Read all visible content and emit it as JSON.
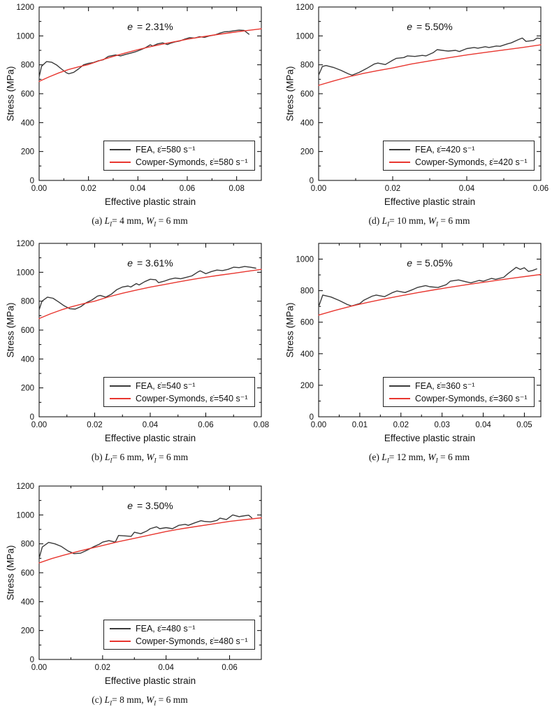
{
  "figure": {
    "background": "#ffffff",
    "fea_color": "#3a3a3a",
    "cowper_color": "#e8362f",
    "axis_color": "#000000"
  },
  "chart_data": [
    {
      "id": "a",
      "type": "line",
      "xlabel": "Effective plastic strain",
      "ylabel": "Stress (MPa)",
      "annotation": {
        "var": "e",
        "rest": " = 2.31%"
      },
      "caption": [
        "(a) ",
        "L",
        "I",
        "= 4 mm, ",
        "W",
        "I",
        " = 6 mm"
      ],
      "xlim": [
        0,
        0.09
      ],
      "ylim": [
        0,
        1200
      ],
      "xticks": [
        0.0,
        0.02,
        0.04,
        0.06,
        0.08
      ],
      "xtick_labels": [
        "0.00",
        "0.02",
        "0.04",
        "0.06",
        "0.08"
      ],
      "x_minor_step": 0.01,
      "yticks": [
        0,
        200,
        400,
        600,
        800,
        1000,
        1200
      ],
      "ytick_labels": [
        "0",
        "200",
        "400",
        "600",
        "800",
        "1000",
        "1200"
      ],
      "y_minor_step": 100,
      "legend_position": "bottom-center",
      "series": [
        {
          "name": "FEA, ε̇=580 s⁻¹",
          "color": "#3a3a3a",
          "x": [
            0,
            0.001,
            0.003,
            0.005,
            0.007,
            0.009,
            0.011,
            0.012,
            0.014,
            0.016,
            0.018,
            0.02,
            0.022,
            0.024,
            0.026,
            0.028,
            0.029,
            0.031,
            0.033,
            0.035,
            0.037,
            0.039,
            0.041,
            0.043,
            0.045,
            0.046,
            0.048,
            0.05,
            0.052,
            0.053,
            0.055,
            0.057,
            0.059,
            0.061,
            0.063,
            0.065,
            0.067,
            0.069,
            0.071,
            0.073,
            0.075,
            0.077,
            0.079,
            0.081,
            0.083,
            0.085
          ],
          "y": [
            715,
            790,
            822,
            818,
            800,
            772,
            745,
            738,
            748,
            772,
            800,
            810,
            816,
            828,
            835,
            858,
            862,
            868,
            862,
            872,
            880,
            890,
            903,
            918,
            938,
            930,
            945,
            952,
            940,
            948,
            958,
            965,
            978,
            988,
            985,
            995,
            990,
            1000,
            1006,
            1018,
            1028,
            1030,
            1036,
            1040,
            1038,
            1012
          ]
        },
        {
          "name": "Cowper-Symonds, ε̇=580 s⁻¹",
          "color": "#e8362f",
          "x": [
            0,
            0.004,
            0.008,
            0.012,
            0.016,
            0.02,
            0.025,
            0.03,
            0.035,
            0.04,
            0.045,
            0.05,
            0.055,
            0.06,
            0.065,
            0.07,
            0.075,
            0.08,
            0.085,
            0.09
          ],
          "y": [
            685,
            716,
            744,
            768,
            786,
            802,
            832,
            858,
            882,
            905,
            925,
            943,
            960,
            977,
            991,
            1004,
            1016,
            1028,
            1039,
            1049
          ]
        }
      ]
    },
    {
      "id": "d",
      "type": "line",
      "xlabel": "Effective plastic strain",
      "ylabel": "Stress (MPa)",
      "annotation": {
        "var": "e",
        "rest": " = 5.50%"
      },
      "caption": [
        "(d) ",
        "L",
        "I",
        "= 10 mm, ",
        "W",
        "I",
        " = 6 mm"
      ],
      "xlim": [
        0,
        0.06
      ],
      "ylim": [
        0,
        1200
      ],
      "xticks": [
        0.0,
        0.02,
        0.04,
        0.06
      ],
      "xtick_labels": [
        "0.00",
        "0.02",
        "0.04",
        "0.06"
      ],
      "x_minor_step": 0.01,
      "yticks": [
        0,
        200,
        400,
        600,
        800,
        1000,
        1200
      ],
      "ytick_labels": [
        "0",
        "200",
        "400",
        "600",
        "800",
        "1000",
        "1200"
      ],
      "y_minor_step": 100,
      "legend_position": "bottom-center",
      "series": [
        {
          "name": "FEA, ε̇=420 s⁻¹",
          "color": "#3a3a3a",
          "x": [
            0,
            0.001,
            0.002,
            0.004,
            0.006,
            0.008,
            0.009,
            0.011,
            0.013,
            0.015,
            0.016,
            0.018,
            0.02,
            0.021,
            0.023,
            0.024,
            0.026,
            0.028,
            0.029,
            0.031,
            0.032,
            0.034,
            0.035,
            0.037,
            0.038,
            0.04,
            0.042,
            0.043,
            0.045,
            0.046,
            0.048,
            0.049,
            0.051,
            0.052,
            0.054,
            0.055,
            0.056,
            0.058,
            0.059,
            0.06
          ],
          "y": [
            728,
            788,
            795,
            782,
            762,
            738,
            728,
            748,
            775,
            805,
            812,
            802,
            832,
            845,
            850,
            862,
            858,
            865,
            862,
            885,
            905,
            898,
            895,
            900,
            892,
            912,
            920,
            915,
            925,
            920,
            930,
            928,
            945,
            952,
            975,
            985,
            962,
            968,
            985,
            982
          ]
        },
        {
          "name": "Cowper-Symonds, ε̇=420 s⁻¹",
          "color": "#e8362f",
          "x": [
            0,
            0.004,
            0.008,
            0.012,
            0.016,
            0.02,
            0.025,
            0.03,
            0.035,
            0.04,
            0.045,
            0.05,
            0.055,
            0.06
          ],
          "y": [
            658,
            688,
            716,
            740,
            760,
            778,
            805,
            827,
            848,
            868,
            886,
            903,
            920,
            938
          ]
        }
      ]
    },
    {
      "id": "b",
      "type": "line",
      "xlabel": "Effective plastic strain",
      "ylabel": "Stress (MPa)",
      "annotation": {
        "var": "e",
        "rest": " = 3.61%"
      },
      "caption": [
        "(b) ",
        "L",
        "I",
        "= 6 mm, ",
        "W",
        "I",
        " = 6 mm"
      ],
      "xlim": [
        0,
        0.08
      ],
      "ylim": [
        0,
        1200
      ],
      "xticks": [
        0.0,
        0.02,
        0.04,
        0.06,
        0.08
      ],
      "xtick_labels": [
        "0.00",
        "0.02",
        "0.04",
        "0.06",
        "0.08"
      ],
      "x_minor_step": 0.01,
      "yticks": [
        0,
        200,
        400,
        600,
        800,
        1000,
        1200
      ],
      "ytick_labels": [
        "0",
        "200",
        "400",
        "600",
        "800",
        "1000",
        "1200"
      ],
      "y_minor_step": 100,
      "legend_position": "bottom-center",
      "series": [
        {
          "name": "FEA, ε̇=540 s⁻¹",
          "color": "#3a3a3a",
          "x": [
            0,
            0.001,
            0.003,
            0.005,
            0.007,
            0.009,
            0.011,
            0.013,
            0.015,
            0.017,
            0.019,
            0.021,
            0.022,
            0.024,
            0.026,
            0.028,
            0.03,
            0.032,
            0.033,
            0.035,
            0.036,
            0.038,
            0.04,
            0.042,
            0.043,
            0.045,
            0.047,
            0.049,
            0.051,
            0.053,
            0.055,
            0.057,
            0.058,
            0.06,
            0.062,
            0.064,
            0.066,
            0.068,
            0.07,
            0.072,
            0.074,
            0.076,
            0.078
          ],
          "y": [
            740,
            800,
            828,
            820,
            795,
            768,
            748,
            745,
            762,
            790,
            808,
            835,
            840,
            828,
            848,
            880,
            898,
            905,
            898,
            922,
            912,
            935,
            952,
            948,
            928,
            938,
            952,
            960,
            955,
            965,
            975,
            1000,
            1010,
            990,
            1005,
            1015,
            1012,
            1020,
            1035,
            1032,
            1040,
            1035,
            1028
          ]
        },
        {
          "name": "Cowper-Symonds, ε̇=540 s⁻¹",
          "color": "#e8362f",
          "x": [
            0,
            0.004,
            0.008,
            0.012,
            0.016,
            0.02,
            0.025,
            0.03,
            0.035,
            0.04,
            0.045,
            0.05,
            0.055,
            0.06,
            0.065,
            0.07,
            0.075,
            0.08
          ],
          "y": [
            680,
            712,
            740,
            763,
            783,
            800,
            830,
            855,
            877,
            897,
            915,
            933,
            950,
            966,
            980,
            993,
            1007,
            1020
          ]
        }
      ]
    },
    {
      "id": "e",
      "type": "line",
      "xlabel": "Effective plastic strain",
      "ylabel": "Stress (MPa)",
      "annotation": {
        "var": "e",
        "rest": " = 5.05%"
      },
      "caption": [
        "(e) ",
        "L",
        "I",
        "= 12 mm, ",
        "W",
        "I",
        " = 6 mm"
      ],
      "xlim": [
        0,
        0.054
      ],
      "ylim": [
        0,
        1100
      ],
      "xticks": [
        0.0,
        0.01,
        0.02,
        0.03,
        0.04,
        0.05
      ],
      "xtick_labels": [
        "0.00",
        "0.01",
        "0.02",
        "0.03",
        "0.04",
        "0.05"
      ],
      "x_minor_step": 0.005,
      "yticks": [
        0,
        200,
        400,
        600,
        800,
        1000
      ],
      "ytick_labels": [
        "0",
        "200",
        "400",
        "600",
        "800",
        "1000"
      ],
      "y_minor_step": 100,
      "legend_position": "bottom-center",
      "series": [
        {
          "name": "FEA, ε̇=360 s⁻¹",
          "color": "#3a3a3a",
          "x": [
            0,
            0.001,
            0.003,
            0.005,
            0.007,
            0.008,
            0.01,
            0.011,
            0.013,
            0.014,
            0.016,
            0.018,
            0.019,
            0.021,
            0.023,
            0.024,
            0.026,
            0.027,
            0.029,
            0.031,
            0.032,
            0.034,
            0.036,
            0.037,
            0.039,
            0.04,
            0.042,
            0.043,
            0.045,
            0.046,
            0.048,
            0.049,
            0.05,
            0.051,
            0.052,
            0.053
          ],
          "y": [
            698,
            772,
            760,
            738,
            712,
            703,
            718,
            740,
            765,
            772,
            762,
            788,
            798,
            788,
            808,
            820,
            832,
            825,
            820,
            838,
            860,
            868,
            855,
            850,
            865,
            860,
            878,
            872,
            885,
            908,
            948,
            935,
            945,
            922,
            928,
            938
          ]
        },
        {
          "name": "Cowper-Symonds, ε̇=360 s⁻¹",
          "color": "#e8362f",
          "x": [
            0,
            0.004,
            0.008,
            0.012,
            0.016,
            0.02,
            0.024,
            0.028,
            0.032,
            0.036,
            0.04,
            0.044,
            0.048,
            0.052,
            0.054
          ],
          "y": [
            645,
            675,
            702,
            726,
            748,
            768,
            787,
            805,
            822,
            838,
            853,
            868,
            882,
            896,
            903
          ]
        }
      ]
    },
    {
      "id": "c",
      "type": "line",
      "xlabel": "Effective plastic strain",
      "ylabel": "Stress (MPa)",
      "annotation": {
        "var": "e",
        "rest": " = 3.50%"
      },
      "caption": [
        "(c) ",
        "L",
        "I",
        "= 8 mm, ",
        "W",
        "I",
        " = 6 mm"
      ],
      "xlim": [
        0,
        0.07
      ],
      "ylim": [
        0,
        1200
      ],
      "xticks": [
        0.0,
        0.02,
        0.04,
        0.06
      ],
      "xtick_labels": [
        "0.00",
        "0.02",
        "0.04",
        "0.06"
      ],
      "x_minor_step": 0.01,
      "yticks": [
        0,
        200,
        400,
        600,
        800,
        1000,
        1200
      ],
      "ytick_labels": [
        "0",
        "200",
        "400",
        "600",
        "800",
        "1000",
        "1200"
      ],
      "y_minor_step": 100,
      "legend_position": "bottom-center",
      "series": [
        {
          "name": "FEA, ε̇=480 s⁻¹",
          "color": "#3a3a3a",
          "x": [
            0,
            0.001,
            0.003,
            0.005,
            0.007,
            0.009,
            0.011,
            0.013,
            0.015,
            0.017,
            0.019,
            0.02,
            0.022,
            0.024,
            0.025,
            0.027,
            0.029,
            0.03,
            0.032,
            0.034,
            0.035,
            0.037,
            0.038,
            0.04,
            0.042,
            0.044,
            0.046,
            0.047,
            0.049,
            0.051,
            0.052,
            0.054,
            0.056,
            0.057,
            0.059,
            0.061,
            0.063,
            0.064,
            0.066,
            0.067
          ],
          "y": [
            700,
            778,
            810,
            800,
            782,
            752,
            732,
            735,
            755,
            778,
            798,
            812,
            822,
            812,
            858,
            855,
            852,
            880,
            870,
            890,
            905,
            918,
            905,
            912,
            905,
            928,
            935,
            928,
            945,
            960,
            955,
            952,
            962,
            978,
            968,
            1000,
            988,
            992,
            998,
            980
          ]
        },
        {
          "name": "Cowper-Symonds, ε̇=480 s⁻¹",
          "color": "#e8362f",
          "x": [
            0,
            0.004,
            0.008,
            0.012,
            0.016,
            0.02,
            0.025,
            0.03,
            0.035,
            0.04,
            0.045,
            0.05,
            0.055,
            0.06,
            0.065,
            0.07
          ],
          "y": [
            668,
            698,
            723,
            746,
            768,
            788,
            815,
            838,
            862,
            885,
            905,
            922,
            938,
            955,
            968,
            980
          ]
        }
      ]
    }
  ]
}
